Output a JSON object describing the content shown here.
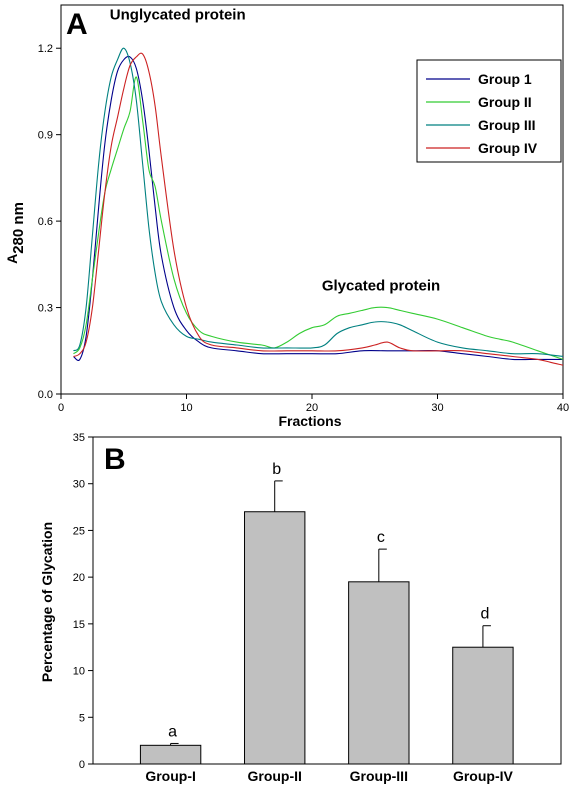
{
  "chart_data": [
    {
      "type": "line",
      "panel": "A",
      "xlabel": "Fractions",
      "ylabel_main": "A",
      "ylabel_sub": "280 nm",
      "xlim": [
        0,
        40
      ],
      "ylim": [
        0,
        1.35
      ],
      "xticks": [
        0,
        10,
        20,
        30,
        40
      ],
      "yticks": [
        0.0,
        0.3,
        0.6,
        0.9,
        1.2
      ],
      "ytick_labels": [
        "0.0",
        "0.3",
        "0.6",
        "0.9",
        "1.2"
      ],
      "grid": false,
      "legend_position": "top-right",
      "annotations": [
        {
          "text": "Unglycated protein",
          "x": 9.3,
          "y": 1.3
        },
        {
          "text": "Glycated protein",
          "x": 25.5,
          "y": 0.36
        }
      ],
      "series": [
        {
          "name": "Group 1",
          "color": "#00008b",
          "x": [
            1,
            1.5,
            2,
            2.5,
            3,
            3.5,
            4,
            4.5,
            5,
            5.5,
            6,
            6.5,
            7,
            7.5,
            8,
            9,
            10,
            11,
            12,
            14,
            16,
            18,
            20,
            22,
            24,
            26,
            28,
            30,
            32,
            34,
            36,
            38,
            40
          ],
          "y": [
            0.13,
            0.12,
            0.2,
            0.4,
            0.65,
            0.87,
            1.02,
            1.12,
            1.16,
            1.17,
            1.13,
            1.02,
            0.85,
            0.65,
            0.48,
            0.3,
            0.22,
            0.18,
            0.16,
            0.15,
            0.14,
            0.14,
            0.14,
            0.14,
            0.15,
            0.15,
            0.15,
            0.15,
            0.14,
            0.13,
            0.12,
            0.12,
            0.12
          ]
        },
        {
          "name": "Group II",
          "color": "#33cc33",
          "x": [
            1,
            1.5,
            2,
            2.5,
            3,
            3.5,
            4,
            4.5,
            5,
            5.5,
            6,
            6.5,
            7,
            7.5,
            8,
            9,
            10,
            11,
            12,
            14,
            16,
            17,
            18,
            19,
            20,
            21,
            22,
            23,
            24,
            25,
            26,
            27,
            28,
            30,
            32,
            34,
            35,
            36,
            38,
            40
          ],
          "y": [
            0.14,
            0.16,
            0.24,
            0.4,
            0.56,
            0.7,
            0.78,
            0.85,
            0.92,
            0.98,
            1.1,
            0.95,
            0.78,
            0.72,
            0.6,
            0.4,
            0.28,
            0.22,
            0.2,
            0.18,
            0.17,
            0.16,
            0.18,
            0.21,
            0.23,
            0.24,
            0.27,
            0.28,
            0.29,
            0.3,
            0.3,
            0.29,
            0.28,
            0.26,
            0.23,
            0.2,
            0.19,
            0.18,
            0.15,
            0.12
          ]
        },
        {
          "name": "Group III",
          "color": "#008080",
          "x": [
            1,
            1.5,
            2,
            2.5,
            3,
            3.5,
            4,
            4.5,
            5,
            5.5,
            6,
            6.5,
            7,
            7.5,
            8,
            9,
            10,
            11,
            12,
            14,
            16,
            18,
            20,
            21,
            22,
            23,
            24,
            25,
            26,
            27,
            28,
            30,
            32,
            34,
            36,
            38,
            40
          ],
          "y": [
            0.15,
            0.17,
            0.3,
            0.55,
            0.8,
            0.98,
            1.1,
            1.16,
            1.2,
            1.15,
            1.02,
            0.8,
            0.58,
            0.42,
            0.32,
            0.24,
            0.2,
            0.19,
            0.18,
            0.17,
            0.16,
            0.16,
            0.16,
            0.17,
            0.21,
            0.23,
            0.24,
            0.25,
            0.25,
            0.24,
            0.22,
            0.18,
            0.16,
            0.15,
            0.14,
            0.14,
            0.13
          ]
        },
        {
          "name": "Group IV",
          "color": "#cc2222",
          "x": [
            1,
            1.5,
            2,
            2.5,
            3,
            3.5,
            4,
            4.5,
            5,
            5.5,
            6,
            6.5,
            7,
            7.5,
            8,
            9,
            10,
            11,
            12,
            14,
            16,
            18,
            20,
            22,
            24,
            25,
            26,
            27,
            28,
            30,
            32,
            34,
            36,
            38,
            39,
            40
          ],
          "y": [
            0.13,
            0.14,
            0.18,
            0.3,
            0.5,
            0.7,
            0.86,
            0.96,
            1.06,
            1.14,
            1.17,
            1.18,
            1.12,
            1.0,
            0.82,
            0.5,
            0.3,
            0.2,
            0.17,
            0.16,
            0.15,
            0.15,
            0.15,
            0.15,
            0.16,
            0.17,
            0.18,
            0.16,
            0.15,
            0.15,
            0.15,
            0.14,
            0.13,
            0.12,
            0.11,
            0.1
          ]
        }
      ]
    },
    {
      "type": "bar",
      "panel": "B",
      "categories": [
        "Group-I",
        "Group-II",
        "Group-III",
        "Group-IV"
      ],
      "values": [
        2.0,
        27.0,
        19.5,
        12.5
      ],
      "errors": [
        0.2,
        3.3,
        3.5,
        2.3
      ],
      "significance": [
        "a",
        "b",
        "c",
        "d"
      ],
      "bar_color": "#c0c0c0",
      "ylabel": "Percentage of Glycation",
      "ylim": [
        0,
        35
      ],
      "yticks": [
        0,
        5,
        10,
        15,
        20,
        25,
        30,
        35
      ],
      "grid": false
    }
  ]
}
